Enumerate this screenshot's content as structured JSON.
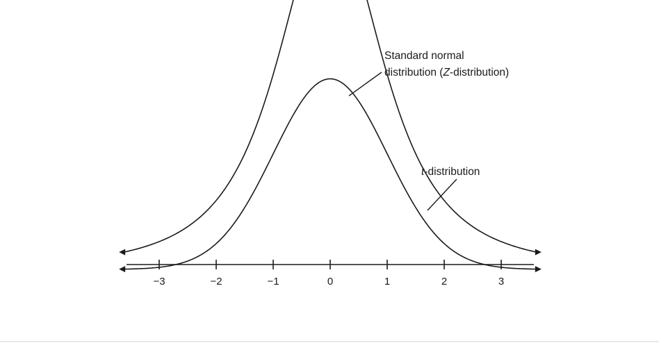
{
  "chart_data": {
    "type": "line",
    "title": "",
    "xlabel": "",
    "ylabel": "",
    "xlim": [
      -3.6,
      3.6
    ],
    "x_ticks": [
      -3,
      -2,
      -1,
      0,
      1,
      2,
      3
    ],
    "x_tick_labels": [
      "−3",
      "−2",
      "−1",
      "0",
      "1",
      "2",
      "3"
    ],
    "grid": false,
    "series": [
      {
        "name": "Standard normal distribution (Z-distribution)",
        "x": [
          -3.5,
          -3,
          -2.5,
          -2,
          -1.5,
          -1,
          -0.5,
          0,
          0.5,
          1,
          1.5,
          2,
          2.5,
          3,
          3.5
        ],
        "y": [
          0.0009,
          0.0044,
          0.0175,
          0.054,
          0.1295,
          0.242,
          0.3521,
          0.3989,
          0.3521,
          0.242,
          0.1295,
          0.054,
          0.0175,
          0.0044,
          0.0009
        ]
      },
      {
        "name": "t-distribution",
        "x": [
          -3.5,
          -3,
          -2.5,
          -2,
          -1.5,
          -1,
          -0.5,
          0,
          0.5,
          1,
          1.5,
          2,
          2.5,
          3,
          3.5
        ],
        "y": [
          0.0113,
          0.0161,
          0.0244,
          0.0398,
          0.0705,
          0.125,
          0.1964,
          0.2357,
          0.1964,
          0.125,
          0.0705,
          0.0398,
          0.0244,
          0.0161,
          0.0113
        ]
      }
    ],
    "annotations": {
      "normal_line1": "Standard normal",
      "normal_line2_prefix": "distribution (",
      "normal_line2_italic": "Z",
      "normal_line2_suffix": "-distribution)",
      "t_italic": "t",
      "t_suffix": "-distribution"
    }
  }
}
